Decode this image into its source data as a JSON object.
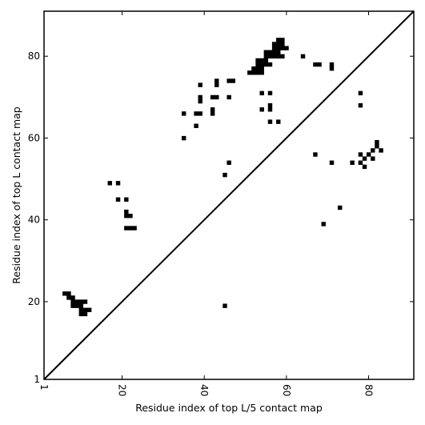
{
  "chart_data": {
    "type": "scatter",
    "title": "",
    "xlabel": "Residue index of top L/5 contact map",
    "ylabel": "Residue index of top L contact map",
    "xlim": [
      1,
      91
    ],
    "ylim": [
      1,
      91
    ],
    "xticks": [
      1,
      20,
      40,
      60,
      80
    ],
    "yticks": [
      1,
      20,
      40,
      60,
      80
    ],
    "grid": false,
    "marker": "square",
    "marker_color": "#000000",
    "diagonal_line": true,
    "points": [
      [
        6,
        22
      ],
      [
        7,
        22
      ],
      [
        7,
        21
      ],
      [
        8,
        21
      ],
      [
        8,
        20
      ],
      [
        9,
        20
      ],
      [
        10,
        20
      ],
      [
        11,
        20
      ],
      [
        8,
        19
      ],
      [
        9,
        19
      ],
      [
        10,
        19
      ],
      [
        10,
        18
      ],
      [
        11,
        18
      ],
      [
        12,
        18
      ],
      [
        10,
        17
      ],
      [
        11,
        17
      ],
      [
        17,
        49
      ],
      [
        19,
        49
      ],
      [
        19,
        45
      ],
      [
        21,
        45
      ],
      [
        21,
        42
      ],
      [
        21,
        41
      ],
      [
        22,
        41
      ],
      [
        21,
        38
      ],
      [
        22,
        38
      ],
      [
        23,
        38
      ],
      [
        35,
        66
      ],
      [
        35,
        60
      ],
      [
        38,
        63
      ],
      [
        38,
        66
      ],
      [
        39,
        66
      ],
      [
        39,
        73
      ],
      [
        39,
        70
      ],
      [
        39,
        69
      ],
      [
        42,
        70
      ],
      [
        43,
        70
      ],
      [
        42,
        67
      ],
      [
        42,
        66
      ],
      [
        43,
        74
      ],
      [
        43,
        73
      ],
      [
        45,
        51
      ],
      [
        45,
        19
      ],
      [
        46,
        54
      ],
      [
        46,
        70
      ],
      [
        46,
        74
      ],
      [
        47,
        74
      ],
      [
        51,
        76
      ],
      [
        52,
        76
      ],
      [
        52,
        77
      ],
      [
        53,
        76
      ],
      [
        54,
        76
      ],
      [
        53,
        77
      ],
      [
        54,
        77
      ],
      [
        53,
        78
      ],
      [
        54,
        78
      ],
      [
        53,
        79
      ],
      [
        54,
        79
      ],
      [
        55,
        79
      ],
      [
        55,
        78
      ],
      [
        56,
        78
      ],
      [
        55,
        80
      ],
      [
        56,
        80
      ],
      [
        55,
        81
      ],
      [
        56,
        81
      ],
      [
        57,
        81
      ],
      [
        57,
        80
      ],
      [
        58,
        80
      ],
      [
        59,
        80
      ],
      [
        57,
        82
      ],
      [
        58,
        82
      ],
      [
        59,
        82
      ],
      [
        60,
        82
      ],
      [
        57,
        83
      ],
      [
        58,
        83
      ],
      [
        59,
        83
      ],
      [
        58,
        84
      ],
      [
        59,
        84
      ],
      [
        58,
        81
      ],
      [
        54,
        71
      ],
      [
        56,
        71
      ],
      [
        54,
        67
      ],
      [
        56,
        68
      ],
      [
        56,
        67
      ],
      [
        56,
        64
      ],
      [
        58,
        64
      ],
      [
        64,
        80
      ],
      [
        67,
        78
      ],
      [
        68,
        78
      ],
      [
        71,
        78
      ],
      [
        71,
        77
      ],
      [
        67,
        56
      ],
      [
        69,
        39
      ],
      [
        71,
        54
      ],
      [
        73,
        43
      ],
      [
        76,
        54
      ],
      [
        78,
        71
      ],
      [
        78,
        68
      ],
      [
        78,
        56
      ],
      [
        78,
        54
      ],
      [
        79,
        55
      ],
      [
        79,
        53
      ],
      [
        80,
        56
      ],
      [
        81,
        55
      ],
      [
        81,
        57
      ],
      [
        82,
        58
      ],
      [
        82,
        59
      ],
      [
        83,
        57
      ]
    ]
  }
}
